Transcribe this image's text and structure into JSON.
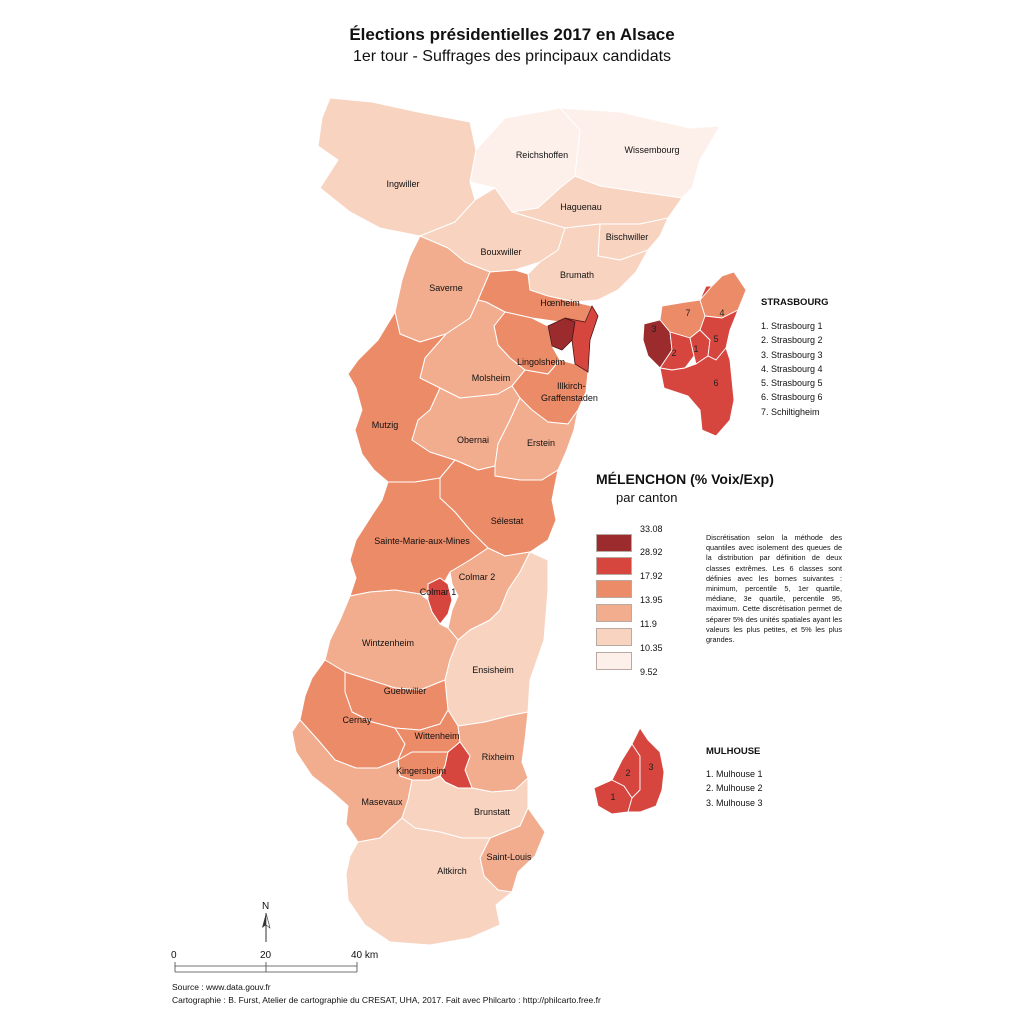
{
  "title": "Élections présidentielles 2017 en Alsace",
  "subtitle": "1er tour - Suffrages des principaux candidats",
  "legend": {
    "title": "MÉLENCHON (% Voix/Exp)",
    "subtitle": "par canton",
    "breaks": [
      "33.08",
      "28.92",
      "17.92",
      "13.95",
      "11.9",
      "10.35",
      "9.52"
    ],
    "class_colors": [
      "#9b2b2c",
      "#d6463f",
      "#ec8b68",
      "#f2ad8f",
      "#f8d3c0",
      "#fdf0ea"
    ],
    "note": "Discrétisation selon la méthode des quantiles avec isolement des queues de la distribution par définition de deux classes extrêmes. Les 6 classes sont définies avec les bornes suivantes : minimum, percentile 5, 1er quartile, médiane, 3e quartile, percentile 95, maximum. Cette discrétisation permet de séparer 5% des unités spatiales ayant les valeurs les plus petites, et 5% les plus grandes."
  },
  "cantons": [
    {
      "name": "Reichshoffen",
      "class": 6
    },
    {
      "name": "Wissembourg",
      "class": 6
    },
    {
      "name": "Ingwiller",
      "class": 5
    },
    {
      "name": "Haguenau",
      "class": 5
    },
    {
      "name": "Bischwiller",
      "class": 5
    },
    {
      "name": "Bouxwiller",
      "class": 5
    },
    {
      "name": "Brumath",
      "class": 5
    },
    {
      "name": "Saverne",
      "class": 4
    },
    {
      "name": "Hœnheim",
      "class": 3
    },
    {
      "name": "Lingolsheim",
      "class": 3
    },
    {
      "name": "Molsheim",
      "class": 4
    },
    {
      "name": "Illkirch-Graffenstaden",
      "class": 3
    },
    {
      "name": "Mutzig",
      "class": 3
    },
    {
      "name": "Obernai",
      "class": 4
    },
    {
      "name": "Erstein",
      "class": 4
    },
    {
      "name": "Sélestat",
      "class": 3
    },
    {
      "name": "Sainte-Marie-aux-Mines",
      "class": 3
    },
    {
      "name": "Colmar 2",
      "class": 4
    },
    {
      "name": "Colmar 1",
      "class": 2
    },
    {
      "name": "Wintzenheim",
      "class": 4
    },
    {
      "name": "Ensisheim",
      "class": 5
    },
    {
      "name": "Guebwiller",
      "class": 3
    },
    {
      "name": "Cernay",
      "class": 3
    },
    {
      "name": "Wittenheim",
      "class": 3
    },
    {
      "name": "Rixheim",
      "class": 4
    },
    {
      "name": "Kingersheim",
      "class": 3
    },
    {
      "name": "Masevaux",
      "class": 4
    },
    {
      "name": "Brunstatt",
      "class": 5
    },
    {
      "name": "Saint-Louis",
      "class": 4
    },
    {
      "name": "Altkirch",
      "class": 5
    }
  ],
  "strasbourg": {
    "title": "STRASBOURG",
    "items": [
      "1. Strasbourg 1",
      "2. Strasbourg 2",
      "3. Strasbourg 3",
      "4. Strasbourg 4",
      "5. Strasbourg 5",
      "6. Strasbourg 6",
      "7. Schiltigheim"
    ],
    "numbers": [
      "1",
      "2",
      "3",
      "4",
      "5",
      "6",
      "7"
    ]
  },
  "mulhouse": {
    "title": "MULHOUSE",
    "items": [
      "1. Mulhouse 1",
      "2. Mulhouse 2",
      "3. Mulhouse 3"
    ],
    "numbers": [
      "1",
      "2",
      "3"
    ]
  },
  "north_label": "N",
  "scale": {
    "ticks": [
      "0",
      "20",
      "40 km"
    ]
  },
  "source": "Source : www.data.gouv.fr",
  "credits": "Cartographie : B. Furst, Atelier de cartographie du CRESAT, UHA, 2017. Fait avec Philcarto : http://philcarto.free.fr"
}
